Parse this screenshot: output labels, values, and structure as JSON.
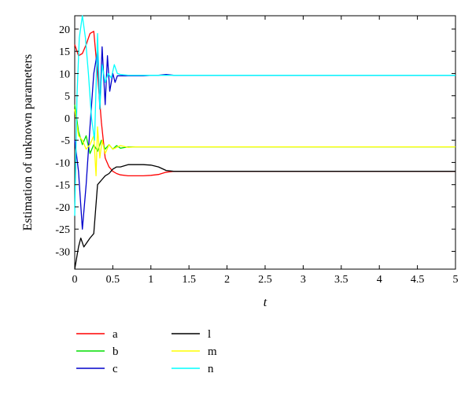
{
  "chart_data": {
    "type": "line",
    "title": "",
    "xlabel": "t",
    "ylabel": "Estimation of unknown parameters",
    "xlim": [
      0,
      5
    ],
    "ylim": [
      -34,
      23
    ],
    "x_ticks": [
      0,
      0.5,
      1,
      1.5,
      2,
      2.5,
      3,
      3.5,
      4,
      4.5,
      5
    ],
    "x_tick_labels": [
      "0",
      "0.5",
      "1",
      "1.5",
      "2",
      "2.5",
      "3",
      "3.5",
      "4",
      "4.5",
      "5"
    ],
    "y_ticks": [
      -30,
      -25,
      -20,
      -15,
      -10,
      -5,
      0,
      5,
      10,
      15,
      20
    ],
    "y_tick_labels": [
      "-30",
      "-25",
      "-20",
      "-15",
      "-10",
      "-5",
      "0",
      "5",
      "10",
      "15",
      "20"
    ],
    "grid": false,
    "legend_placement": "below",
    "series": [
      {
        "name": "a",
        "color": "#ff0000",
        "x": [
          0,
          0.05,
          0.1,
          0.15,
          0.2,
          0.25,
          0.3,
          0.35,
          0.4,
          0.45,
          0.5,
          0.55,
          0.6,
          0.7,
          0.8,
          0.9,
          1.0,
          1.1,
          1.2,
          1.3,
          1.5,
          2,
          3,
          4,
          5
        ],
        "y": [
          16.5,
          14,
          14.5,
          16.5,
          19,
          19.5,
          10,
          -1,
          -9,
          -11,
          -12,
          -12.5,
          -12.8,
          -13,
          -13,
          -13,
          -12.9,
          -12.7,
          -12.2,
          -12,
          -12,
          -12,
          -12,
          -12,
          -12
        ]
      },
      {
        "name": "b",
        "color": "#00dd00",
        "x": [
          0,
          0.05,
          0.1,
          0.15,
          0.2,
          0.25,
          0.3,
          0.35,
          0.4,
          0.45,
          0.5,
          0.55,
          0.6,
          0.7,
          0.8,
          0.9,
          1.0,
          1.1,
          1.2,
          1.3,
          1.5,
          2,
          3,
          4,
          5
        ],
        "y": [
          3,
          -3,
          -6,
          -4,
          -8,
          -6,
          -7.5,
          -5,
          -7,
          -6,
          -7,
          -6.2,
          -6.8,
          -6.5,
          -6.5,
          -6.5,
          -6.5,
          -6.5,
          -6.5,
          -6.5,
          -6.5,
          -6.5,
          -6.5,
          -6.5,
          -6.5
        ]
      },
      {
        "name": "c",
        "color": "#0000cc",
        "x": [
          0,
          0.05,
          0.1,
          0.15,
          0.2,
          0.25,
          0.3,
          0.33,
          0.36,
          0.4,
          0.43,
          0.46,
          0.5,
          0.53,
          0.56,
          0.6,
          0.7,
          0.8,
          0.9,
          1.0,
          1.1,
          1.2,
          1.3,
          1.5,
          2,
          3,
          4,
          5
        ],
        "y": [
          -5,
          -12,
          -25,
          -15,
          -2,
          10,
          15,
          2,
          16,
          3,
          14,
          6,
          10,
          8,
          9.5,
          9.5,
          9.5,
          9.5,
          9.5,
          9.6,
          9.6,
          9.8,
          9.6,
          9.6,
          9.6,
          9.6,
          9.6,
          9.6
        ]
      },
      {
        "name": "l",
        "color": "#000000",
        "x": [
          0,
          0.05,
          0.08,
          0.12,
          0.16,
          0.2,
          0.25,
          0.3,
          0.35,
          0.4,
          0.45,
          0.5,
          0.55,
          0.6,
          0.7,
          0.8,
          0.9,
          1.0,
          1.1,
          1.2,
          1.3,
          1.5,
          2,
          3,
          4,
          5
        ],
        "y": [
          -34,
          -29,
          -27,
          -29,
          -28,
          -27,
          -26,
          -15,
          -14,
          -13,
          -12.5,
          -11.5,
          -11,
          -11,
          -10.5,
          -10.5,
          -10.5,
          -10.6,
          -11,
          -11.8,
          -12,
          -12,
          -12,
          -12,
          -12,
          -12
        ]
      },
      {
        "name": "m",
        "color": "#ffff00",
        "x": [
          0,
          0.05,
          0.1,
          0.15,
          0.2,
          0.25,
          0.28,
          0.3,
          0.33,
          0.36,
          0.4,
          0.45,
          0.5,
          0.6,
          0.7,
          0.8,
          0.9,
          1.0,
          1.2,
          1.5,
          2,
          3,
          4,
          5
        ],
        "y": [
          2,
          -4,
          -5,
          -7,
          -6,
          -4,
          -13,
          -2,
          -9,
          -5,
          -8,
          -6,
          -7,
          -6.2,
          -6.6,
          -6.5,
          -6.5,
          -6.5,
          -6.5,
          -6.5,
          -6.5,
          -6.5,
          -6.5,
          -6.5
        ]
      },
      {
        "name": "n",
        "color": "#00ffff",
        "x": [
          0,
          0.03,
          0.06,
          0.1,
          0.14,
          0.18,
          0.22,
          0.26,
          0.3,
          0.33,
          0.36,
          0.4,
          0.44,
          0.48,
          0.52,
          0.56,
          0.6,
          0.7,
          0.8,
          0.9,
          1.0,
          1.2,
          1.5,
          2,
          3,
          4,
          5
        ],
        "y": [
          -22,
          5,
          18,
          23,
          18,
          10,
          0,
          -5,
          19,
          2,
          12,
          8,
          10,
          9,
          12,
          10,
          9.8,
          9.6,
          9.6,
          9.6,
          9.6,
          9.6,
          9.6,
          9.6,
          9.6,
          9.6,
          9.6
        ]
      }
    ]
  }
}
